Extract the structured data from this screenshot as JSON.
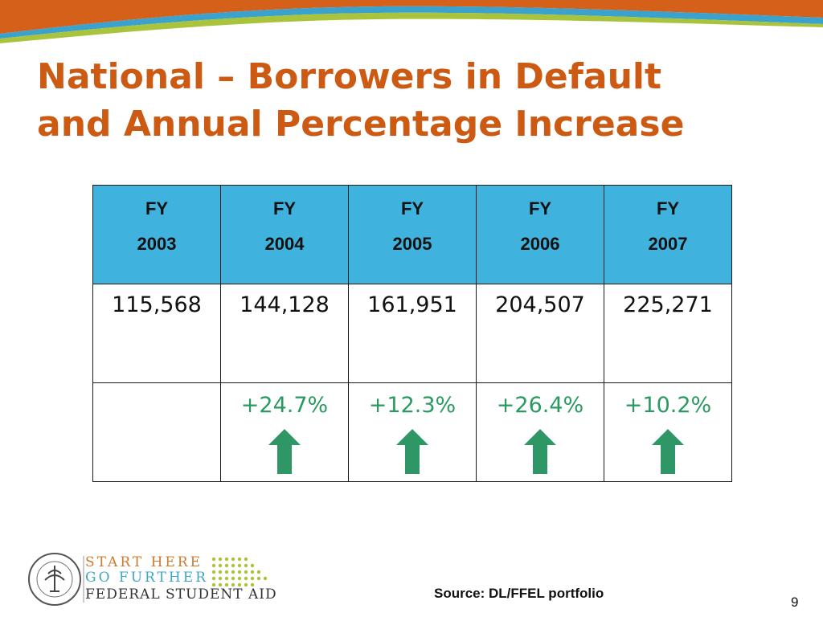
{
  "title": {
    "line1": "National – Borrowers in Default",
    "line2": "and Annual Percentage Increase"
  },
  "table": {
    "columns": [
      {
        "label": "FY",
        "year": "2003",
        "value": "115,568",
        "change": ""
      },
      {
        "label": "FY",
        "year": "2004",
        "value": "144,128",
        "change": "+24.7%"
      },
      {
        "label": "FY",
        "year": "2005",
        "value": "161,951",
        "change": "+12.3%"
      },
      {
        "label": "FY",
        "year": "2006",
        "value": "204,507",
        "change": "+26.4%"
      },
      {
        "label": "FY",
        "year": "2007",
        "value": "225,271",
        "change": "+10.2%"
      }
    ],
    "arrow_icon": "up-arrow-icon",
    "colors": {
      "header_bg": "#3fb2dd",
      "increase": "#2a9a60",
      "title": "#cc5a12"
    }
  },
  "footer": {
    "logo": {
      "line1": "START HERE",
      "line2": "GO FURTHER",
      "line3": "FEDERAL STUDENT AID",
      "seal_text": "DEPARTMENT OF EDUCATION · UNITED STATES OF AMERICA"
    },
    "source": "Source: DL/FFEL portfolio",
    "page_number": "9"
  }
}
